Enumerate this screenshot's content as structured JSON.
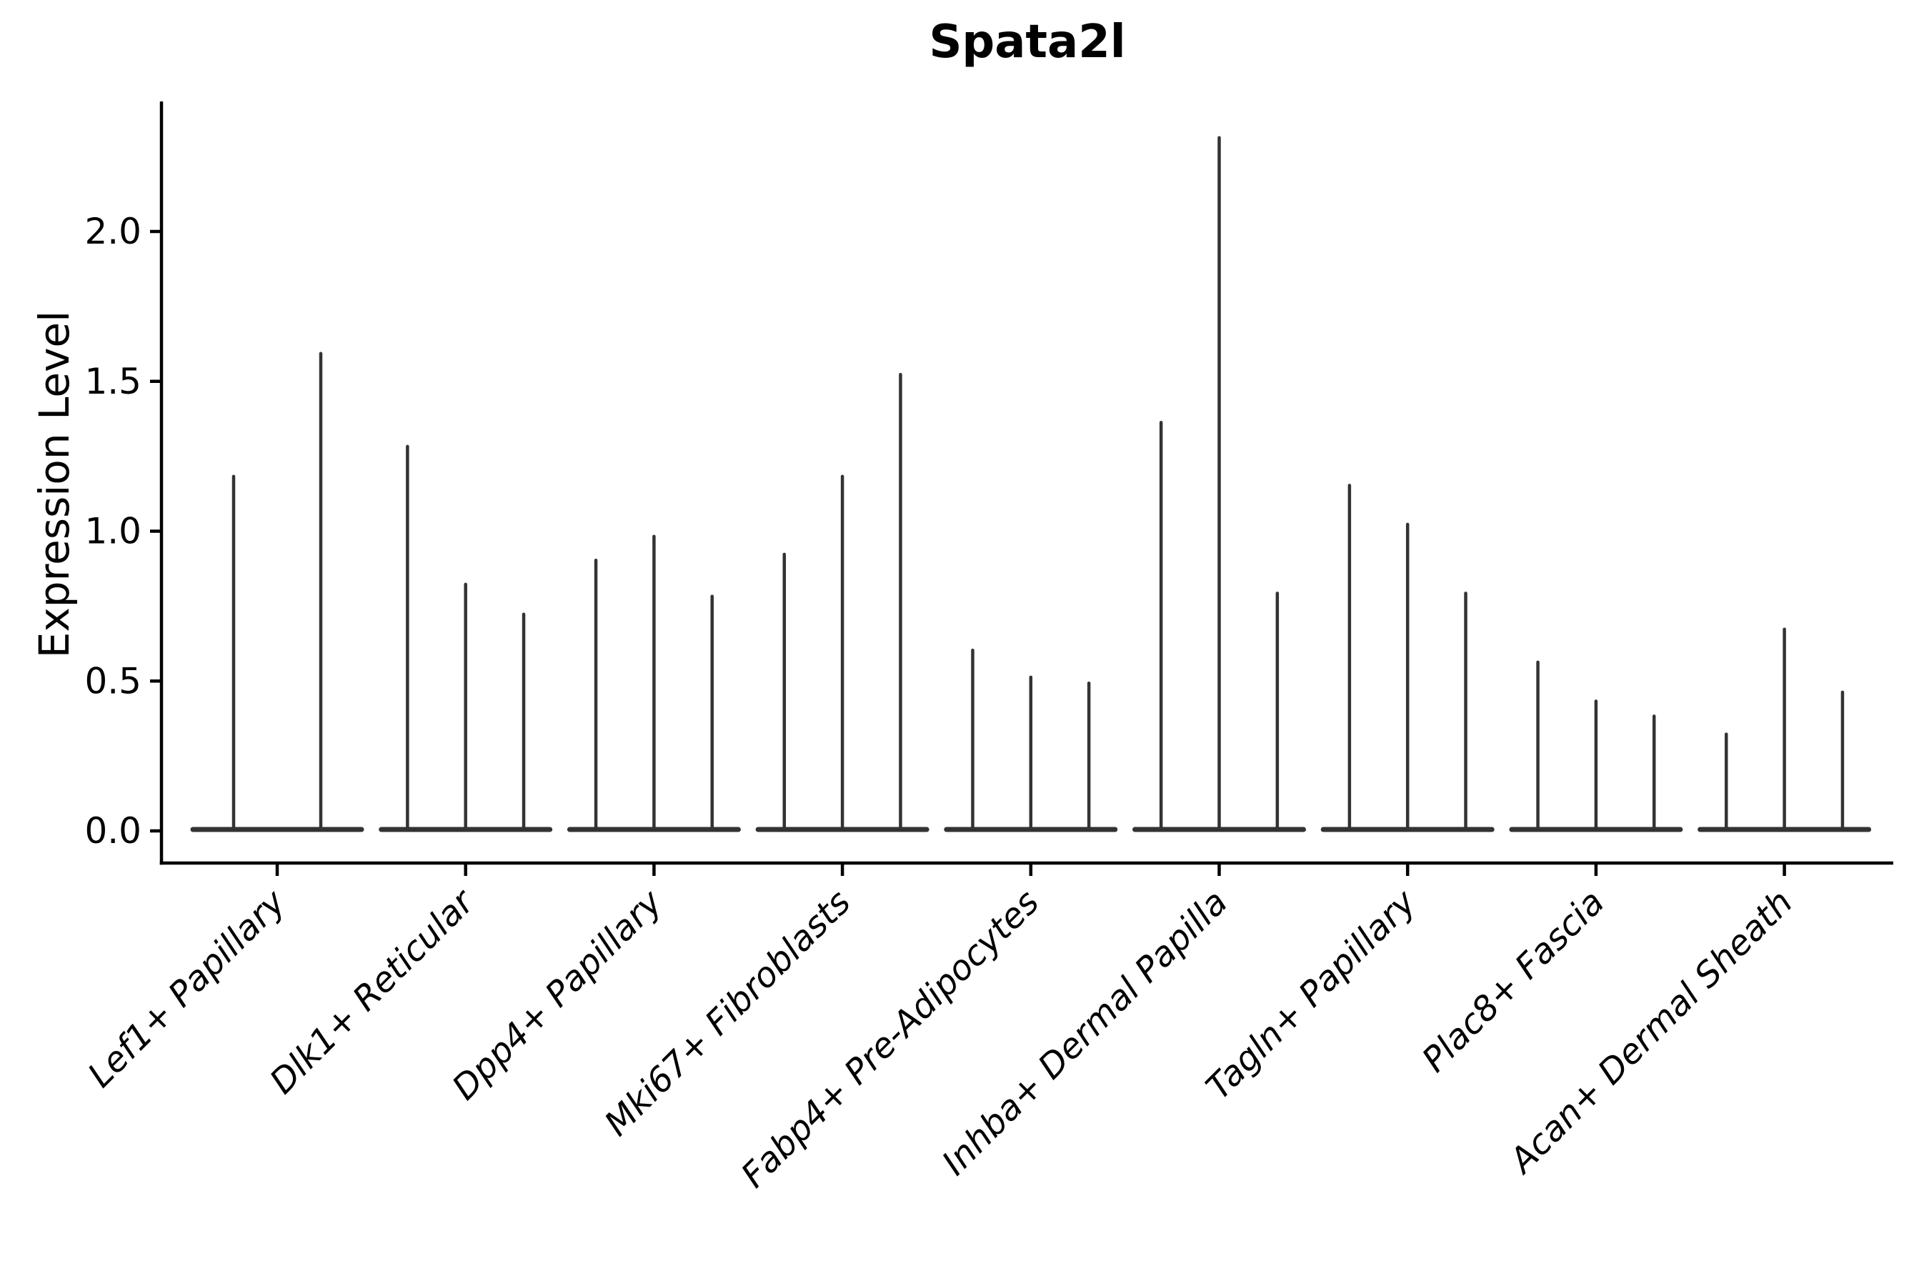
{
  "chart_data": {
    "type": "violin",
    "title": "Spata2l",
    "ylabel": "Expression Level",
    "xlabel": "",
    "grid": false,
    "legend": false,
    "ylim": [
      -0.11,
      2.43
    ],
    "yticks": [
      {
        "value": 0.0,
        "label": "0.0"
      },
      {
        "value": 0.5,
        "label": "0.5"
      },
      {
        "value": 1.0,
        "label": "1.0"
      },
      {
        "value": 1.5,
        "label": "1.5"
      },
      {
        "value": 2.0,
        "label": "2.0"
      }
    ],
    "categories": [
      "Lef1+ Papillary",
      "Dlk1+ Reticular",
      "Dpp4+ Papillary",
      "Mki67+ Fibroblasts",
      "Fabp4+ Pre-Adipocytes",
      "Inhba+ Dermal Papilla",
      "Tagln+ Papillary",
      "Plac8+ Fascia",
      "Acan+ Dermal Sheath"
    ],
    "violin_max_expression": [
      [
        1.19,
        1.6
      ],
      [
        1.29,
        0.83,
        0.73
      ],
      [
        0.91,
        0.99,
        0.79
      ],
      [
        0.93,
        1.19,
        1.53
      ],
      [
        0.61,
        0.52,
        0.5
      ],
      [
        1.37,
        2.32,
        0.8
      ],
      [
        1.16,
        1.03,
        0.8
      ],
      [
        0.57,
        0.44,
        0.39
      ],
      [
        0.33,
        0.68,
        0.47
      ]
    ],
    "colors": {
      "violin": "#333333",
      "axis": "#000000",
      "text": "#000000",
      "background": "#ffffff"
    }
  }
}
